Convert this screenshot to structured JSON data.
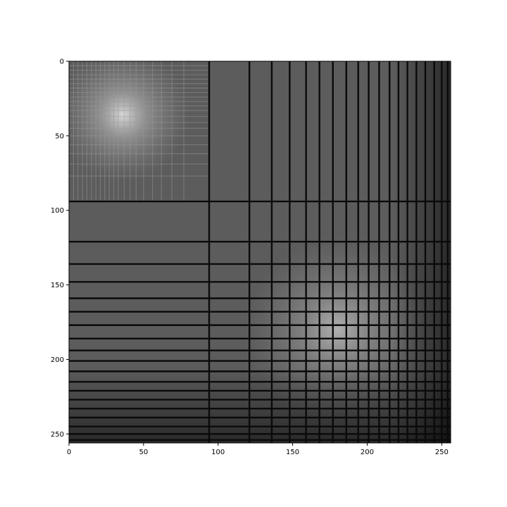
{
  "chart_data": {
    "type": "heatmap",
    "title": "",
    "xlabel": "",
    "ylabel": "",
    "shape": [
      256,
      256
    ],
    "xlim": [
      0,
      256
    ],
    "ylim": [
      256,
      0
    ],
    "x_ticks": [
      0,
      50,
      100,
      150,
      200,
      250
    ],
    "y_ticks": [
      0,
      50,
      100,
      150,
      200,
      250
    ],
    "x_tick_labels": [
      "0",
      "50",
      "100",
      "150",
      "200",
      "250"
    ],
    "y_tick_labels": [
      "0",
      "50",
      "100",
      "150",
      "200",
      "250"
    ],
    "colormap": "gray",
    "colorbar": false,
    "grid": false,
    "dark_lines": [
      94,
      121,
      136,
      148,
      159,
      168,
      177,
      186,
      194,
      201,
      208,
      215,
      221,
      227,
      233,
      239,
      245,
      250,
      254
    ],
    "faint_lines": [
      3,
      6,
      9,
      12,
      15,
      18,
      21,
      24,
      27,
      30,
      33,
      37,
      41,
      45,
      50,
      56,
      62,
      69,
      77
    ],
    "bright_spots": [
      {
        "x": 36,
        "y": 36,
        "value": 0.85
      },
      {
        "x": 180,
        "y": 180,
        "value": 0.7
      }
    ],
    "background_value": 0.36
  }
}
